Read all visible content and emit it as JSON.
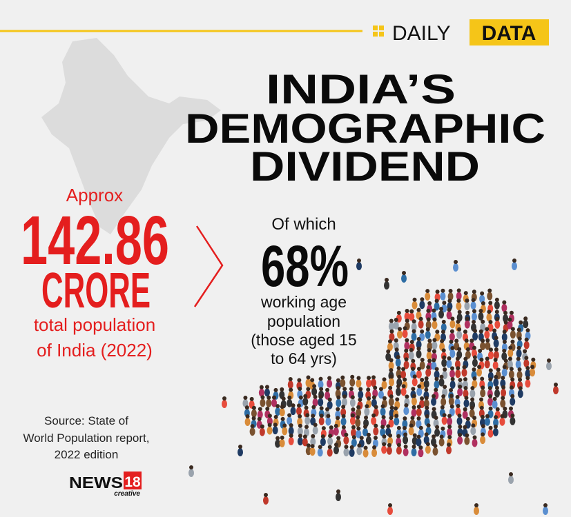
{
  "header": {
    "label": "DAILY",
    "highlight": "DATA"
  },
  "title": {
    "lines": [
      "INDIA’S",
      "DEMOGRAPHIC",
      "DIVIDEND"
    ]
  },
  "population": {
    "prefix": "Approx",
    "value": "142.86",
    "unit": "CRORE",
    "caption": [
      "total population",
      "of India (2022)"
    ]
  },
  "working_age": {
    "prefix": "Of which",
    "value": "68%",
    "caption": [
      "working age",
      "population",
      "(those aged 15",
      "to 64 yrs)"
    ]
  },
  "source": {
    "lines": [
      "Source: State of",
      "World Population report,",
      "2022 edition"
    ]
  },
  "logo": {
    "name": "NEWS",
    "number": "18",
    "tagline": "creative"
  }
}
